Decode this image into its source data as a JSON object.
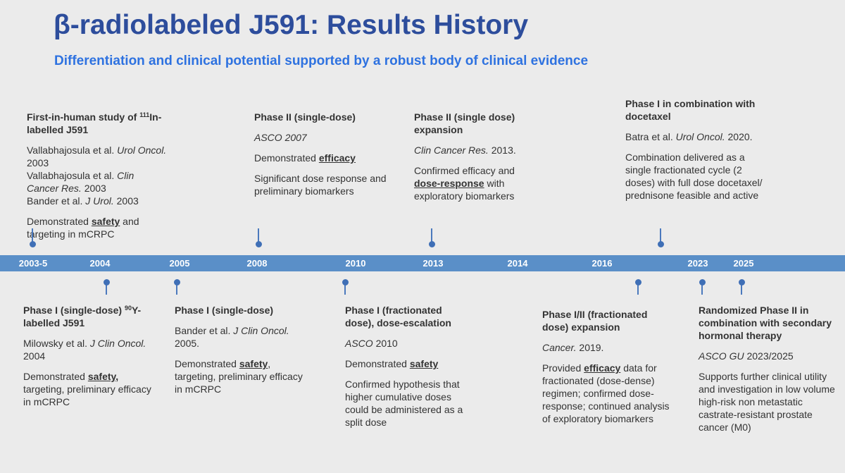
{
  "title": "β-radiolabeled J591: Results History",
  "subtitle": "Differentiation and clinical potential supported by a robust body of clinical evidence",
  "years": [
    "2003-5",
    "2004",
    "2005",
    "2008",
    "2010",
    "2013",
    "2014",
    "2016",
    "2023",
    "2025"
  ],
  "top_entries": [
    {
      "heading": [
        "First-in-human study of ",
        {
          "text": "111",
          "style": "sup"
        },
        "In-labelled J591"
      ],
      "references": [
        [
          "Vallabhajosula et al. ",
          {
            "text": "Urol Oncol.",
            "style": "i"
          },
          " 2003"
        ],
        [
          "Vallabhajosula et al. ",
          {
            "text": "Clin Cancer Res.",
            "style": "i"
          },
          " 2003"
        ],
        [
          "Bander et al. ",
          {
            "text": "J Urol.",
            "style": "i"
          },
          " 2003"
        ]
      ],
      "notes": [
        [
          "Demonstrated  ",
          {
            "text": "safety",
            "style": "bu"
          },
          " and targeting in mCRPC"
        ]
      ]
    },
    {
      "heading": [
        "Phase II (single-dose)"
      ],
      "references": [
        [
          {
            "text": "ASCO 2007",
            "style": "i"
          }
        ]
      ],
      "notes": [
        [
          "Demonstrated ",
          {
            "text": "efficacy",
            "style": "bu"
          }
        ],
        [
          "Significant dose response and preliminary biomarkers"
        ]
      ]
    },
    {
      "heading": [
        "Phase II (single dose) expansion"
      ],
      "references": [
        [
          {
            "text": "Clin Cancer Res.",
            "style": "i"
          },
          " 2013."
        ]
      ],
      "notes": [
        [
          "Confirmed efficacy and ",
          {
            "text": "dose-response",
            "style": "bu"
          },
          " with exploratory biomarkers"
        ]
      ]
    },
    {
      "heading": [
        "Phase I in combination with docetaxel"
      ],
      "references": [
        [
          "Batra et al. ",
          {
            "text": "Urol Oncol.",
            "style": "i"
          },
          " 2020."
        ]
      ],
      "notes": [
        [
          "Combination delivered as a single fractionated cycle (2 doses) with full dose docetaxel/ prednisone feasible and active"
        ]
      ]
    }
  ],
  "bottom_entries": [
    {
      "heading": [
        "Phase I (single-dose) ",
        {
          "text": "90",
          "style": "sup"
        },
        "Y-labelled J591"
      ],
      "references": [
        [
          "Milowsky et al. ",
          {
            "text": "J Clin Oncol.",
            "style": "i"
          },
          " 2004"
        ]
      ],
      "notes": [
        [
          "Demonstrated ",
          {
            "text": "safety,",
            "style": "bu"
          },
          " targeting, preliminary efficacy in mCRPC"
        ]
      ]
    },
    {
      "heading": [
        "Phase I (single-dose)"
      ],
      "references": [
        [
          "Bander et al. ",
          {
            "text": "J Clin Oncol.",
            "style": "i"
          },
          " 2005."
        ]
      ],
      "notes": [
        [
          "Demonstrated ",
          {
            "text": "safety",
            "style": "bu"
          },
          ", targeting, preliminary efficacy in mCRPC"
        ]
      ]
    },
    {
      "heading": [
        "Phase I (fractionated dose), dose-escalation"
      ],
      "references": [
        [
          {
            "text": "ASCO",
            "style": "i"
          },
          " 2010"
        ]
      ],
      "notes": [
        [
          "Demonstrated ",
          {
            "text": "safety",
            "style": "bu"
          }
        ],
        [
          "Confirmed hypothesis that higher cumulative doses could be administered as a split dose"
        ]
      ]
    },
    {
      "heading": [
        "Phase I/II (fractionated dose) expansion"
      ],
      "references": [
        [
          {
            "text": "Cancer.",
            "style": "i"
          },
          " 2019."
        ]
      ],
      "notes": [
        [
          "Provided ",
          {
            "text": "efficacy",
            "style": "bu"
          },
          " data for fractionated (dose-dense) regimen; confirmed dose-response; continued analysis of exploratory biomarkers"
        ]
      ]
    },
    {
      "heading": [
        "Randomized Phase II in combination with secondary hormonal therapy"
      ],
      "references": [
        [
          {
            "text": "ASCO GU",
            "style": "i"
          },
          " 2023/2025"
        ]
      ],
      "notes": [
        [
          "Supports further clinical utility and investigation in low volume high-risk non metastatic castrate-resistant prostate cancer (M0)"
        ]
      ]
    }
  ]
}
